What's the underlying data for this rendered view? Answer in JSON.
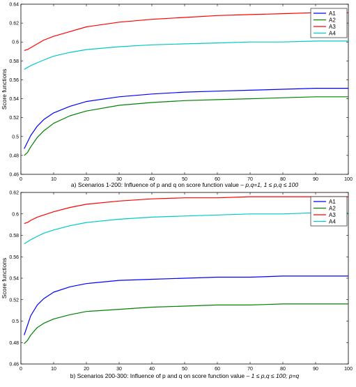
{
  "chart_data": [
    {
      "type": "line",
      "ylabel": "Score functions",
      "xlabel": "",
      "caption_main": "a) Scenarios 1-200: Influence of p and q on score function value – ",
      "caption_italic": "p,q=1,  1 ≤ p,q ≤ 100",
      "xlim": [
        0,
        100
      ],
      "ylim": [
        0.46,
        0.64
      ],
      "xticks": [
        0,
        10,
        20,
        30,
        40,
        50,
        60,
        70,
        80,
        90,
        100
      ],
      "yticks": [
        0.46,
        0.48,
        0.5,
        0.52,
        0.54,
        0.56,
        0.58,
        0.6,
        0.62,
        0.64
      ],
      "legend_position": "top-right",
      "x": [
        1,
        2,
        3,
        5,
        7,
        10,
        15,
        20,
        30,
        40,
        50,
        60,
        70,
        80,
        90,
        100
      ],
      "series": [
        {
          "name": "A1",
          "color": "#0000ff",
          "values": [
            0.487,
            0.494,
            0.501,
            0.511,
            0.518,
            0.525,
            0.532,
            0.537,
            0.542,
            0.545,
            0.547,
            0.548,
            0.549,
            0.55,
            0.551,
            0.551
          ]
        },
        {
          "name": "A2",
          "color": "#008000",
          "values": [
            0.48,
            0.483,
            0.489,
            0.499,
            0.506,
            0.514,
            0.522,
            0.527,
            0.533,
            0.536,
            0.538,
            0.539,
            0.54,
            0.541,
            0.542,
            0.542
          ]
        },
        {
          "name": "A3",
          "color": "#ff0000",
          "values": [
            0.591,
            0.592,
            0.594,
            0.598,
            0.602,
            0.606,
            0.611,
            0.616,
            0.621,
            0.624,
            0.626,
            0.628,
            0.629,
            0.63,
            0.631,
            0.631
          ]
        },
        {
          "name": "A4",
          "color": "#00c8c8",
          "values": [
            0.571,
            0.573,
            0.575,
            0.578,
            0.581,
            0.585,
            0.589,
            0.592,
            0.595,
            0.597,
            0.598,
            0.599,
            0.6,
            0.6,
            0.601,
            0.601
          ]
        }
      ]
    },
    {
      "type": "line",
      "ylabel": "Score functions",
      "xlabel": "",
      "caption_main": "b) Scenarios 200-300: Influence of p and q on score function value – ",
      "caption_italic": "1 ≤ p,q ≤ 100; p=q",
      "xlim": [
        0,
        100
      ],
      "ylim": [
        0.46,
        0.62
      ],
      "xticks": [
        0,
        10,
        20,
        30,
        40,
        50,
        60,
        70,
        80,
        90,
        100
      ],
      "yticks": [
        0.46,
        0.48,
        0.5,
        0.52,
        0.54,
        0.56,
        0.58,
        0.6,
        0.62
      ],
      "legend_position": "top-right",
      "x": [
        1,
        2,
        3,
        5,
        7,
        10,
        15,
        20,
        30,
        40,
        50,
        60,
        70,
        80,
        90,
        100
      ],
      "series": [
        {
          "name": "A1",
          "color": "#0000ff",
          "values": [
            0.487,
            0.496,
            0.505,
            0.515,
            0.521,
            0.527,
            0.532,
            0.535,
            0.538,
            0.539,
            0.54,
            0.541,
            0.541,
            0.542,
            0.542,
            0.542
          ]
        },
        {
          "name": "A2",
          "color": "#008000",
          "values": [
            0.479,
            0.482,
            0.487,
            0.494,
            0.498,
            0.502,
            0.506,
            0.509,
            0.511,
            0.513,
            0.514,
            0.515,
            0.515,
            0.516,
            0.516,
            0.516
          ]
        },
        {
          "name": "A3",
          "color": "#ff0000",
          "values": [
            0.591,
            0.592,
            0.594,
            0.597,
            0.599,
            0.602,
            0.606,
            0.609,
            0.612,
            0.614,
            0.615,
            0.615,
            0.616,
            0.616,
            0.616,
            0.616
          ]
        },
        {
          "name": "A4",
          "color": "#00c8c8",
          "values": [
            0.572,
            0.574,
            0.576,
            0.579,
            0.582,
            0.585,
            0.589,
            0.592,
            0.595,
            0.597,
            0.598,
            0.599,
            0.6,
            0.6,
            0.601,
            0.601
          ]
        }
      ]
    }
  ]
}
